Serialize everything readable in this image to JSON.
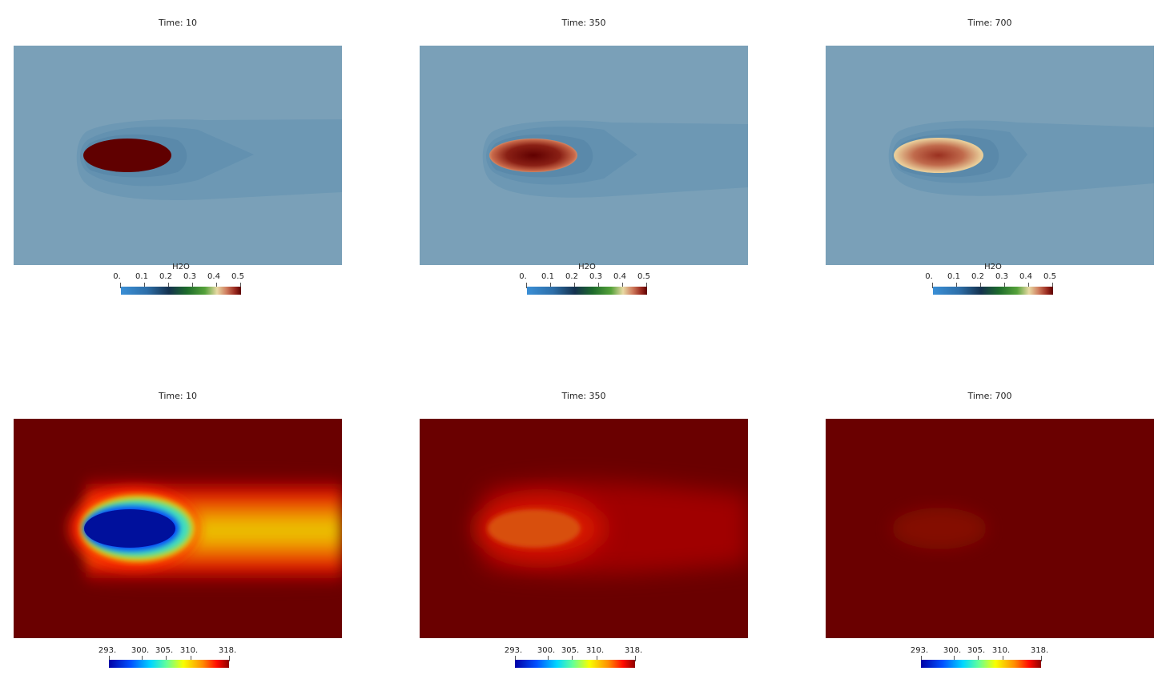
{
  "panels": [
    {
      "title": "Time: 10"
    },
    {
      "title": "Time: 350"
    },
    {
      "title": "Time: 700"
    },
    {
      "title": "Time: 10"
    },
    {
      "title": "Time: 350"
    },
    {
      "title": "Time: 700"
    }
  ],
  "legend_h2o": {
    "title": "H2O",
    "ticks": [
      "0.",
      "0.1",
      "0.2",
      "0.3",
      "0.4",
      "0.5"
    ]
  },
  "legend_temp": {
    "title": "",
    "ticks": [
      "293.",
      "300.",
      "305.",
      "310.",
      "318."
    ]
  },
  "colors": {
    "h2o_background": "#7aa0b8",
    "h2o_plume": "#5a8aa8",
    "h2o_core": "#600000",
    "temp_background": "#6a0000",
    "temp_cold": "#00109c"
  }
}
